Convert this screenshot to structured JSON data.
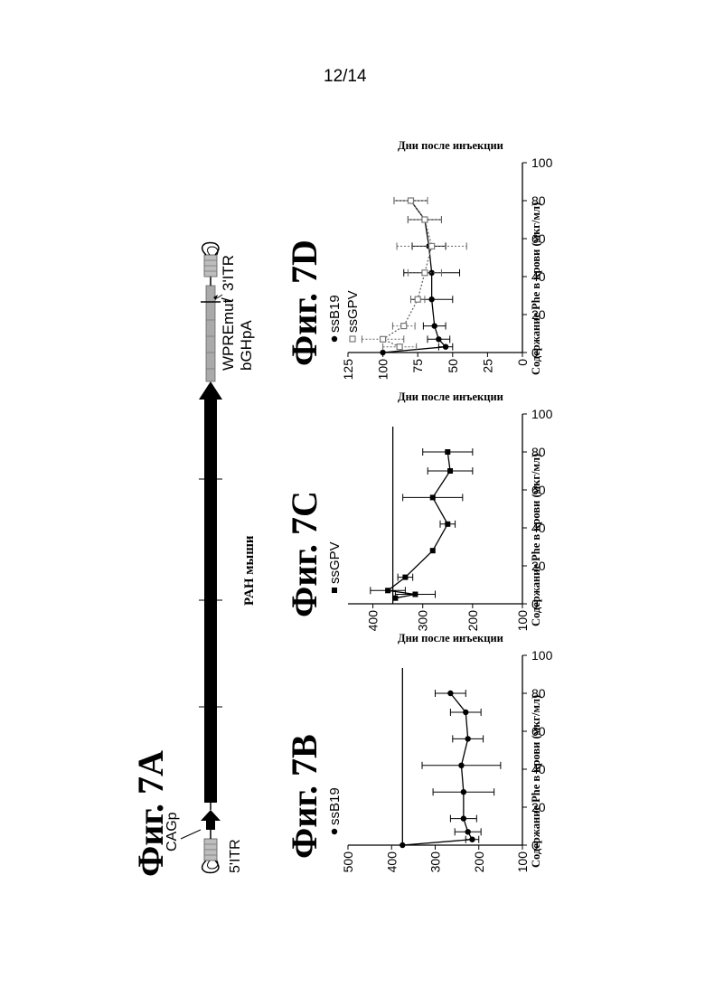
{
  "page_number": "12/14",
  "fig7a": {
    "title": "Фиг. 7A",
    "labels": {
      "cag": "CAGp",
      "itr5": "5'ITR",
      "pah": "PAH мыши",
      "wpre": "WPREmut",
      "bgh": "bGHpA",
      "itr3": "3'ITR"
    }
  },
  "chart_data": [
    {
      "id": "fig7b",
      "type": "line",
      "title": "Фиг. 7B",
      "xlabel": "Дни после инъекции",
      "ylabel": "Содержание Phe в крови (мкг/мл)",
      "xlim": [
        0,
        100
      ],
      "ylim": [
        100,
        500
      ],
      "xticks": [
        0,
        20,
        40,
        60,
        80,
        100
      ],
      "yticks": [
        100,
        200,
        300,
        400,
        500
      ],
      "reference_line": 375,
      "legend": "top-left",
      "series": [
        {
          "name": "ssB19",
          "marker": "circle",
          "x": [
            0,
            3,
            7,
            14,
            28,
            42,
            56,
            70,
            80
          ],
          "y": [
            375,
            215,
            225,
            235,
            235,
            240,
            225,
            230,
            265
          ],
          "err": [
            0,
            15,
            30,
            30,
            70,
            90,
            35,
            35,
            35
          ]
        }
      ]
    },
    {
      "id": "fig7c",
      "type": "line",
      "title": "Фиг. 7C",
      "xlabel": "Дни после инъекции",
      "ylabel": "Содержание Phe в крови (мкг/мл)",
      "xlim": [
        0,
        100
      ],
      "ylim": [
        100,
        450
      ],
      "xticks": [
        0,
        20,
        40,
        60,
        80,
        100
      ],
      "yticks": [
        100,
        200,
        300,
        400
      ],
      "reference_line": 360,
      "legend": "top-left",
      "series": [
        {
          "name": "ssGPV",
          "marker": "square",
          "x": [
            3,
            5,
            7,
            14,
            28,
            42,
            56,
            70,
            80
          ],
          "y": [
            355,
            315,
            370,
            335,
            280,
            250,
            280,
            245,
            250
          ],
          "err": [
            0,
            40,
            35,
            15,
            0,
            15,
            60,
            45,
            50
          ]
        }
      ]
    },
    {
      "id": "fig7d",
      "type": "line",
      "title": "Фиг. 7D",
      "xlabel": "Дни после инъекции",
      "ylabel": "Содержание Phe в крови (мкг/мл)",
      "xlim": [
        0,
        100
      ],
      "ylim": [
        0,
        125
      ],
      "xticks": [
        0,
        20,
        40,
        60,
        80,
        100
      ],
      "yticks": [
        0,
        25,
        50,
        75,
        100,
        125
      ],
      "legend": "top-left",
      "series": [
        {
          "name": "ssB19",
          "marker": "circle",
          "x": [
            0,
            3,
            7,
            14,
            28,
            42,
            56,
            70,
            80
          ],
          "y": [
            100,
            55,
            60,
            63,
            65,
            65,
            67,
            70,
            80
          ],
          "err": [
            0,
            5,
            8,
            8,
            15,
            20,
            12,
            12,
            12
          ]
        },
        {
          "name": "ssGPV",
          "marker": "open-square",
          "x": [
            3,
            7,
            14,
            28,
            42,
            56,
            70,
            80
          ],
          "y": [
            88,
            100,
            85,
            75,
            70,
            65,
            70,
            80
          ],
          "err": [
            12,
            15,
            8,
            5,
            12,
            25,
            12,
            12
          ]
        }
      ]
    }
  ]
}
